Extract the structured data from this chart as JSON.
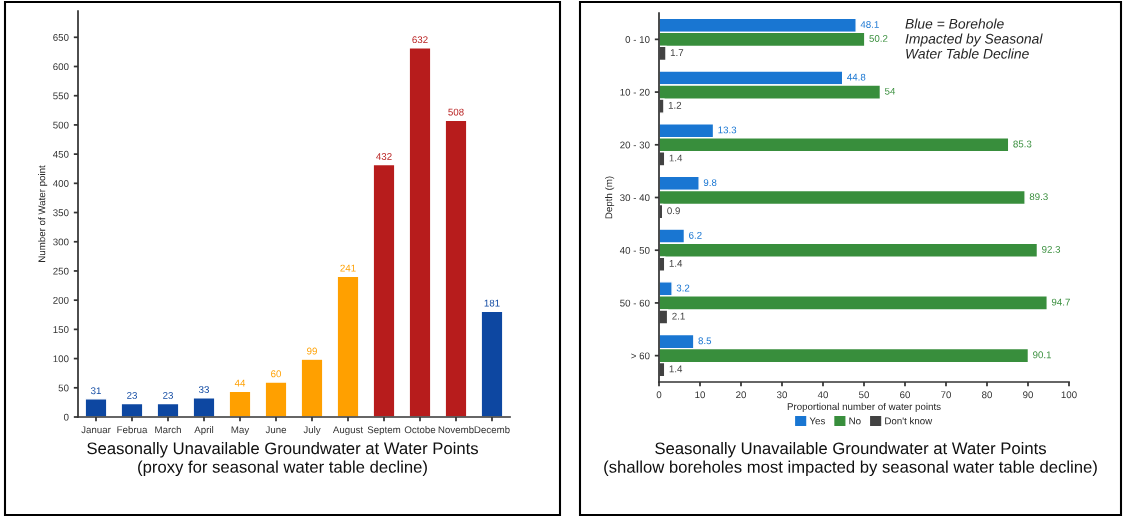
{
  "chart_data": [
    {
      "type": "bar",
      "title": "Seasonally Unavailable Groundwater at Water Points\n(proxy for seasonal water table decline)",
      "ylabel": "Number of Water point",
      "categories": [
        "Januar",
        "Februa",
        "March",
        "April",
        "May",
        "June",
        "July",
        "August",
        "Septem",
        "Octobe",
        "Novemb",
        "Decemb"
      ],
      "values": [
        31,
        23,
        23,
        33,
        44,
        60,
        99,
        241,
        432,
        632,
        508,
        181
      ],
      "colors": [
        "#0d47a1",
        "#0d47a1",
        "#0d47a1",
        "#0d47a1",
        "#ffa000",
        "#ffa000",
        "#ffa000",
        "#ffa000",
        "#b71c1c",
        "#b71c1c",
        "#b71c1c",
        "#0d47a1"
      ],
      "ylim": [
        0,
        695
      ],
      "yticks": [
        0,
        50,
        100,
        150,
        200,
        250,
        300,
        350,
        400,
        450,
        500,
        550,
        600,
        650
      ],
      "grid": false,
      "data_labels": true
    },
    {
      "type": "bar",
      "orientation": "horizontal",
      "title": "Seasonally Unavailable Groundwater at Water Points\n(shallow boreholes most impacted by seasonal water table decline)",
      "xlabel": "Proportional number of water points",
      "ylabel": "Depth (m)",
      "categories": [
        "0 - 10",
        "10 - 20",
        "20 - 30",
        "30 - 40",
        "40 - 50",
        "50 - 60",
        "> 60"
      ],
      "series": [
        {
          "name": "Yes",
          "color": "#1976d2",
          "values": [
            48.1,
            44.8,
            13.3,
            9.8,
            6.2,
            3.2,
            8.5
          ]
        },
        {
          "name": "No",
          "color": "#388e3c",
          "values": [
            50.2,
            54,
            85.3,
            89.3,
            92.3,
            94.7,
            90.1
          ]
        },
        {
          "name": "Don't know",
          "color": "#424242",
          "values": [
            1.7,
            1.2,
            1.4,
            0.9,
            1.4,
            2.1,
            1.4
          ]
        }
      ],
      "xlim": [
        0,
        100
      ],
      "xticks": [
        0,
        10,
        20,
        30,
        40,
        50,
        60,
        70,
        80,
        90,
        100
      ],
      "grid": false,
      "data_labels": true,
      "legend": "bottom",
      "annotations": [
        "Blue = Borehole\nImpacted by Seasonal\nWater Table Decline"
      ]
    }
  ]
}
